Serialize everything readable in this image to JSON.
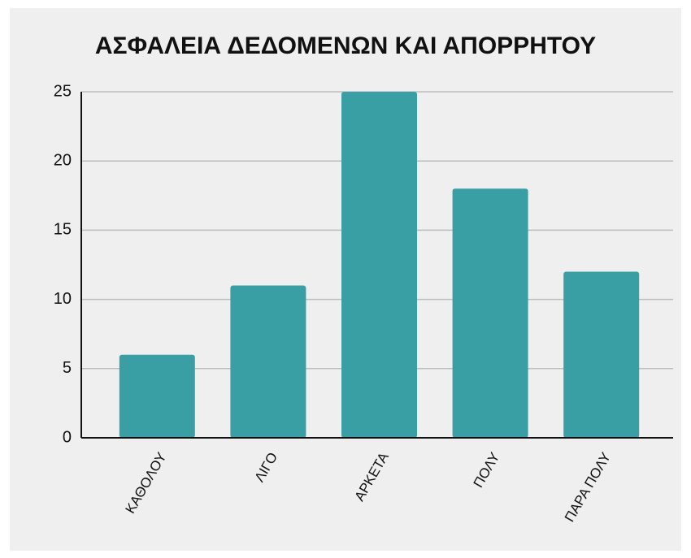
{
  "chart_data": {
    "type": "bar",
    "title": "ΑΣΦΑΛΕΙΑ ΔΕΔΟΜΕΝΩΝ ΚΑΙ ΑΠΟΡΡΗΤΟΥ",
    "categories": [
      "ΚΑΘΟΛΟΥ",
      "ΛΙΓΟ",
      "ΑΡΚΕΤΑ",
      "ΠΟΛΥ",
      "ΠΑΡΑ ΠΟΛΥ"
    ],
    "values": [
      6,
      11,
      25,
      18,
      12
    ],
    "color": "#3a9ea5",
    "ylim": [
      0,
      25
    ],
    "yticks": [
      0,
      5,
      10,
      15,
      20,
      25
    ],
    "grid": true
  }
}
